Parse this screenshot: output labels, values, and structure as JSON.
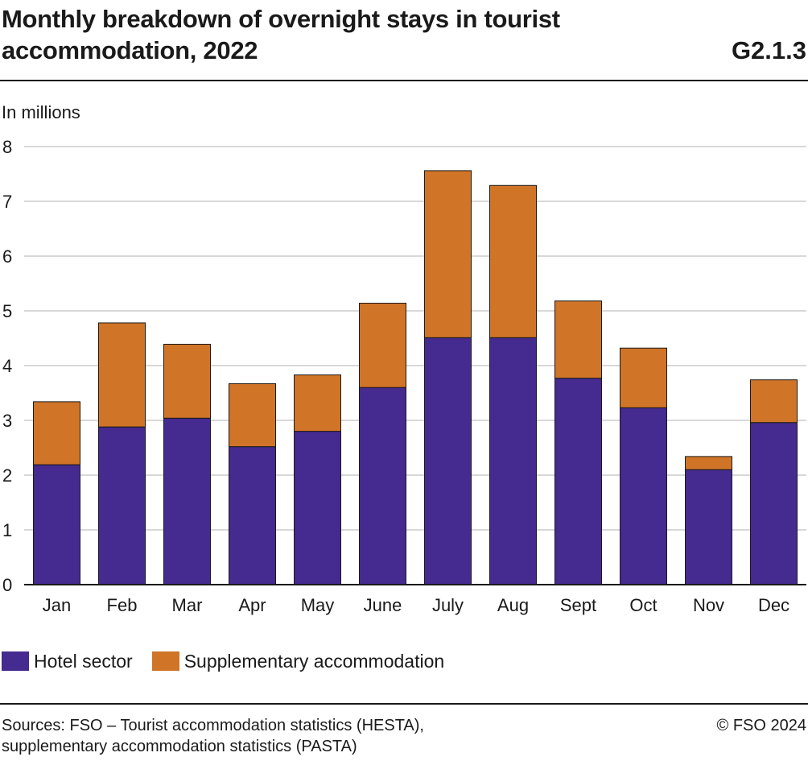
{
  "header": {
    "title": "Monthly breakdown of overnight stays in tourist accommodation, 2022",
    "figure_id": "G2.1.3"
  },
  "footer": {
    "source_line1": "Sources: FSO – Tourist accommodation statistics (HESTA),",
    "source_line2": "supplementary accommodation statistics (PASTA)",
    "copyright": "© FSO 2024"
  },
  "chart_data": {
    "type": "bar",
    "stacked": true,
    "title": "Monthly breakdown of overnight stays in tourist accommodation, 2022",
    "ylabel": "In millions",
    "xlabel": "",
    "ylim": [
      0,
      8
    ],
    "yticks": [
      0,
      1,
      2,
      3,
      4,
      5,
      6,
      7,
      8
    ],
    "grid": true,
    "legend_position": "bottom-left",
    "categories": [
      "Jan",
      "Feb",
      "Mar",
      "Apr",
      "May",
      "June",
      "July",
      "Aug",
      "Sept",
      "Oct",
      "Nov",
      "Dec"
    ],
    "series": [
      {
        "name": "Hotel sector",
        "color": "#452a8f",
        "values": [
          2.19,
          2.88,
          3.04,
          2.52,
          2.8,
          3.6,
          4.51,
          4.51,
          3.77,
          3.23,
          2.1,
          2.96
        ]
      },
      {
        "name": "Supplementary accommodation",
        "color": "#d07428",
        "values": [
          1.15,
          1.9,
          1.35,
          1.15,
          1.03,
          1.54,
          3.05,
          2.78,
          1.41,
          1.09,
          0.24,
          0.78
        ]
      }
    ]
  }
}
